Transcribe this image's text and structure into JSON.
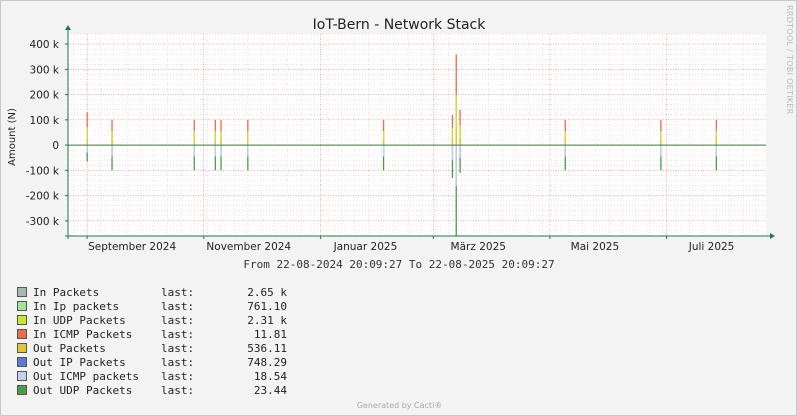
{
  "side_text": "RRDTOOL / TOBI OETIKER",
  "footer": "Generated by Cacti®",
  "range_text": "From 22-08-2024 20:09:27 To 22-08-2025 20:09:27",
  "colors": {
    "background": "#f3f3f3",
    "plot": "#ffffff",
    "grid_major": "#e08080",
    "grid_minor": "#e6c0c0",
    "axis": "#1a7a4a"
  },
  "legend": [
    {
      "name": "In Packets",
      "last_label": "last:",
      "value": "2.65 k",
      "color": "#a9b8ae"
    },
    {
      "name": "In Ip packets",
      "last_label": "last:",
      "value": "761.10",
      "color": "#a3e39b"
    },
    {
      "name": "In UDP Packets",
      "last_label": "last:",
      "value": "2.31 k",
      "color": "#c9e635"
    },
    {
      "name": "In ICMP Packets",
      "last_label": "last:",
      "value": "11.81",
      "color": "#ef6b4b"
    },
    {
      "name": "Out Packets",
      "last_label": "last:",
      "value": "536.11",
      "color": "#e6c43a"
    },
    {
      "name": "Out IP Packets",
      "last_label": "last:",
      "value": "748.29",
      "color": "#5a79d6"
    },
    {
      "name": "Out ICMP packets",
      "last_label": "last:",
      "value": "18.54",
      "color": "#c2d0f2"
    },
    {
      "name": "Out UDP Packets",
      "last_label": "last:",
      "value": "23.44",
      "color": "#4a9c4a"
    }
  ],
  "chart_data": {
    "type": "area",
    "title": "IoT-Bern - Network Stack",
    "ylabel": "Amount (N)",
    "xlabel": "",
    "ylim": [
      -360000,
      440000
    ],
    "yticks": [
      400000,
      300000,
      200000,
      100000,
      0,
      -100000,
      -200000,
      -300000
    ],
    "ytick_labels": [
      "400 k",
      "300 k",
      "200 k",
      "100 k",
      "0",
      "-100 k",
      "-200 k",
      "-300 k"
    ],
    "x_range": [
      "2024-08-22",
      "2025-08-22"
    ],
    "x_ticks": [
      {
        "date": "2024-09-01",
        "label": "September 2024"
      },
      {
        "date": "2024-11-01",
        "label": "November 2024"
      },
      {
        "date": "2025-01-01",
        "label": "Januar 2025"
      },
      {
        "date": "2025-03-01",
        "label": "März 2025"
      },
      {
        "date": "2025-05-01",
        "label": "Mai 2025"
      },
      {
        "date": "2025-07-01",
        "label": "Juli 2025"
      }
    ],
    "grid": true,
    "spikes": [
      {
        "date": "2024-09-01",
        "pos": 130000,
        "neg": -65000
      },
      {
        "date": "2024-09-14",
        "pos": 100000,
        "neg": -100000
      },
      {
        "date": "2024-10-27",
        "pos": 100000,
        "neg": -100000
      },
      {
        "date": "2024-11-07",
        "pos": 100000,
        "neg": -100000
      },
      {
        "date": "2024-11-10",
        "pos": 100000,
        "neg": -100000
      },
      {
        "date": "2024-11-24",
        "pos": 100000,
        "neg": -100000
      },
      {
        "date": "2025-02-03",
        "pos": 100000,
        "neg": -100000
      },
      {
        "date": "2025-03-11",
        "pos": 120000,
        "neg": -130000
      },
      {
        "date": "2025-03-13",
        "pos": 360000,
        "neg": -360000
      },
      {
        "date": "2025-03-15",
        "pos": 140000,
        "neg": -110000
      },
      {
        "date": "2025-05-09",
        "pos": 100000,
        "neg": -100000
      },
      {
        "date": "2025-06-28",
        "pos": 100000,
        "neg": -100000
      },
      {
        "date": "2025-07-27",
        "pos": 100000,
        "neg": -100000
      }
    ]
  }
}
